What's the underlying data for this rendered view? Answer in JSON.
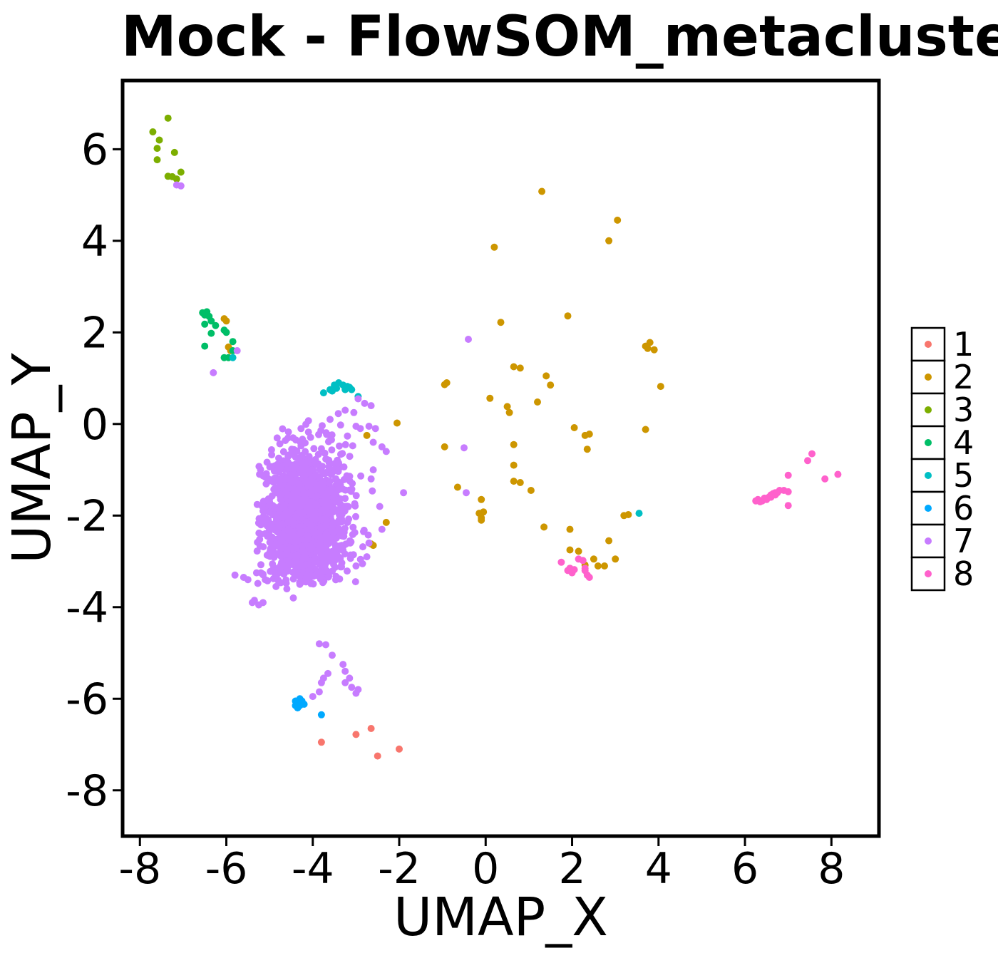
{
  "chart_data": {
    "type": "scatter",
    "title": "Mock - FlowSOM_metaclusters",
    "xlabel": "UMAP_X",
    "ylabel": "UMAP_Y",
    "xlim": [
      -8.4,
      9.1
    ],
    "ylim": [
      -9.0,
      7.5
    ],
    "xticks": [
      -8,
      -6,
      -4,
      -2,
      0,
      2,
      4,
      6,
      8
    ],
    "yticks": [
      -8,
      -6,
      -4,
      -2,
      0,
      2,
      4,
      6
    ],
    "grid": false,
    "legend_position": "right",
    "colors": {
      "1": "#F8766D",
      "2": "#CD9600",
      "3": "#7CAE00",
      "4": "#00BE67",
      "5": "#00BFC4",
      "6": "#00A9FF",
      "7": "#C77CFF",
      "8": "#FF61CC"
    },
    "series": [
      {
        "name": "1",
        "points": [
          [
            -3.8,
            -6.95
          ],
          [
            -3.0,
            -6.78
          ],
          [
            -2.65,
            -6.65
          ],
          [
            -2.5,
            -7.25
          ],
          [
            -2.0,
            -7.1
          ]
        ]
      },
      {
        "name": "2",
        "points": [
          [
            1.3,
            5.08
          ],
          [
            3.05,
            4.45
          ],
          [
            2.85,
            4.0
          ],
          [
            0.2,
            3.86
          ],
          [
            1.9,
            2.36
          ],
          [
            0.35,
            2.22
          ],
          [
            3.7,
            1.7
          ],
          [
            3.8,
            1.78
          ],
          [
            3.9,
            1.62
          ],
          [
            3.75,
            1.65
          ],
          [
            4.05,
            0.82
          ],
          [
            3.7,
            -0.12
          ],
          [
            0.65,
            1.25
          ],
          [
            0.8,
            1.22
          ],
          [
            1.4,
            1.05
          ],
          [
            1.5,
            0.85
          ],
          [
            -0.9,
            0.9
          ],
          [
            -0.95,
            0.86
          ],
          [
            0.1,
            0.56
          ],
          [
            0.5,
            0.38
          ],
          [
            0.55,
            0.25
          ],
          [
            1.2,
            0.48
          ],
          [
            2.05,
            -0.08
          ],
          [
            2.3,
            -0.25
          ],
          [
            2.4,
            -0.22
          ],
          [
            2.35,
            -0.55
          ],
          [
            0.65,
            -0.45
          ],
          [
            -0.95,
            -0.5
          ],
          [
            0.65,
            -0.9
          ],
          [
            0.65,
            -1.25
          ],
          [
            0.8,
            -1.28
          ],
          [
            1.05,
            -1.45
          ],
          [
            -0.65,
            -1.38
          ],
          [
            -0.1,
            -1.65
          ],
          [
            -0.05,
            -1.92
          ],
          [
            -0.15,
            -1.95
          ],
          [
            -0.1,
            -2.05
          ],
          [
            -0.1,
            -2.1
          ],
          [
            3.2,
            -2.0
          ],
          [
            3.3,
            -1.98
          ],
          [
            1.35,
            -2.25
          ],
          [
            1.95,
            -2.3
          ],
          [
            2.85,
            -2.55
          ],
          [
            1.95,
            -2.75
          ],
          [
            2.15,
            -2.78
          ],
          [
            2.5,
            -2.95
          ],
          [
            3.0,
            -2.95
          ],
          [
            2.3,
            -3.08
          ],
          [
            2.6,
            -3.1
          ],
          [
            2.75,
            -3.1
          ],
          [
            -2.05,
            0.02
          ],
          [
            -2.75,
            -0.25
          ],
          [
            -2.3,
            -2.15
          ],
          [
            -2.65,
            -2.62
          ],
          [
            -2.6,
            -2.65
          ],
          [
            -6.0,
            2.25
          ],
          [
            -6.05,
            2.3
          ],
          [
            -5.95,
            1.68
          ],
          [
            -5.9,
            1.6
          ]
        ]
      },
      {
        "name": "3",
        "points": [
          [
            -7.35,
            6.68
          ],
          [
            -7.7,
            6.38
          ],
          [
            -7.55,
            6.2
          ],
          [
            -7.2,
            5.93
          ],
          [
            -7.6,
            6.02
          ],
          [
            -7.6,
            5.77
          ],
          [
            -7.05,
            5.5
          ],
          [
            -7.35,
            5.41
          ],
          [
            -7.25,
            5.4
          ],
          [
            -7.15,
            5.35
          ]
        ]
      },
      {
        "name": "4",
        "points": [
          [
            -6.55,
            2.43
          ],
          [
            -6.45,
            2.45
          ],
          [
            -6.4,
            2.35
          ],
          [
            -6.35,
            2.25
          ],
          [
            -6.5,
            2.38
          ],
          [
            -6.25,
            2.15
          ],
          [
            -6.5,
            2.18
          ],
          [
            -6.05,
            2.05
          ],
          [
            -6.0,
            2.0
          ],
          [
            -6.35,
            1.98
          ],
          [
            -5.85,
            1.8
          ],
          [
            -6.5,
            1.7
          ],
          [
            -5.85,
            1.6
          ],
          [
            -6.05,
            1.45
          ],
          [
            -5.95,
            1.45
          ]
        ]
      },
      {
        "name": "5",
        "points": [
          [
            -3.75,
            0.68
          ],
          [
            -3.6,
            0.75
          ],
          [
            -3.5,
            0.85
          ],
          [
            -3.4,
            0.9
          ],
          [
            -3.3,
            0.85
          ],
          [
            -3.2,
            0.82
          ],
          [
            -3.15,
            0.8
          ],
          [
            -3.25,
            0.75
          ],
          [
            -3.45,
            0.78
          ],
          [
            -3.55,
            0.72
          ],
          [
            -3.1,
            0.75
          ],
          [
            -2.95,
            0.6
          ],
          [
            -5.85,
            1.45
          ],
          [
            3.55,
            -1.95
          ]
        ]
      },
      {
        "name": "6",
        "points": [
          [
            -4.4,
            -6.05
          ],
          [
            -4.35,
            -6.1
          ],
          [
            -4.3,
            -6.0
          ],
          [
            -4.35,
            -6.2
          ],
          [
            -4.3,
            -6.15
          ],
          [
            -4.25,
            -6.05
          ],
          [
            -4.2,
            -6.12
          ],
          [
            -4.4,
            -6.15
          ],
          [
            -3.8,
            -6.35
          ]
        ]
      },
      {
        "name": "7",
        "points": [
          [
            -7.15,
            5.22
          ],
          [
            -7.05,
            5.2
          ],
          [
            -0.4,
            1.85
          ],
          [
            -5.75,
            1.6
          ],
          [
            -6.3,
            1.12
          ],
          [
            -0.5,
            -0.52
          ],
          [
            -0.45,
            -1.5
          ],
          [
            -1.9,
            -1.5
          ],
          [
            -3.85,
            -4.8
          ],
          [
            -3.7,
            -4.82
          ],
          [
            -3.55,
            -5.05
          ],
          [
            -3.3,
            -5.25
          ],
          [
            -3.25,
            -5.4
          ],
          [
            -3.65,
            -5.45
          ],
          [
            -3.75,
            -5.55
          ],
          [
            -3.15,
            -5.55
          ],
          [
            -3.25,
            -5.65
          ],
          [
            -3.1,
            -5.75
          ],
          [
            -3.8,
            -5.65
          ],
          [
            -3.85,
            -5.85
          ],
          [
            -2.95,
            -5.8
          ],
          [
            -3.0,
            -5.88
          ],
          [
            -4.0,
            -5.95
          ],
          [
            -2.7,
            -0.05
          ],
          [
            -2.55,
            -0.1
          ],
          [
            -2.9,
            -0.1
          ],
          [
            -3.0,
            -0.05
          ],
          [
            -3.05,
            0.25
          ],
          [
            -3.25,
            0.3
          ],
          [
            -3.6,
            0.1
          ],
          [
            -2.8,
            0.45
          ],
          [
            -2.65,
            0.4
          ],
          [
            -2.95,
            0.55
          ],
          [
            -2.6,
            -0.4
          ],
          [
            -2.4,
            -0.5
          ],
          [
            -2.3,
            -0.6
          ],
          [
            -2.6,
            -1.0
          ],
          [
            -2.65,
            -1.2
          ],
          [
            -2.45,
            -1.8
          ],
          [
            -2.4,
            -2.3
          ],
          [
            -2.7,
            -2.6
          ],
          [
            -2.75,
            -2.9
          ],
          [
            -2.85,
            -3.05
          ],
          [
            -3.0,
            -3.1
          ],
          [
            -5.6,
            -3.35
          ],
          [
            -5.5,
            -3.4
          ],
          [
            -5.8,
            -3.3
          ],
          [
            -5.3,
            -3.25
          ],
          [
            -5.2,
            -3.25
          ],
          [
            -5.1,
            -3.4
          ],
          [
            -5.35,
            -3.85
          ],
          [
            -5.4,
            -3.9
          ],
          [
            -5.25,
            -3.95
          ],
          [
            -5.15,
            -3.9
          ],
          [
            -4.85,
            -3.55
          ],
          [
            -4.6,
            -3.6
          ],
          [
            -4.45,
            -3.8
          ],
          [
            -4.3,
            -3.5
          ],
          [
            -4.25,
            -3.45
          ],
          [
            -4.1,
            -3.35
          ],
          [
            -5.05,
            -2.45
          ],
          [
            -5.2,
            -2.2
          ],
          [
            -5.15,
            -1.9
          ],
          [
            -5.0,
            -1.7
          ],
          [
            -4.85,
            -1.4
          ],
          [
            -4.75,
            -1.2
          ],
          [
            -4.6,
            -1.0
          ],
          [
            -4.4,
            -0.9
          ]
        ]
      },
      {
        "name": "8",
        "points": [
          [
            7.55,
            -0.65
          ],
          [
            7.45,
            -0.8
          ],
          [
            7.85,
            -1.2
          ],
          [
            8.15,
            -1.1
          ],
          [
            7.0,
            -1.12
          ],
          [
            6.9,
            -1.45
          ],
          [
            7.0,
            -1.48
          ],
          [
            7.0,
            -1.78
          ],
          [
            6.8,
            -1.45
          ],
          [
            6.7,
            -1.5
          ],
          [
            6.65,
            -1.52
          ],
          [
            6.6,
            -1.55
          ],
          [
            6.55,
            -1.6
          ],
          [
            6.5,
            -1.65
          ],
          [
            6.45,
            -1.62
          ],
          [
            6.4,
            -1.68
          ],
          [
            6.35,
            -1.7
          ],
          [
            6.3,
            -1.65
          ],
          [
            6.25,
            -1.68
          ],
          [
            6.6,
            -1.6
          ],
          [
            6.7,
            -1.55
          ],
          [
            6.75,
            -1.5
          ],
          [
            1.75,
            -3.02
          ],
          [
            1.9,
            -3.2
          ],
          [
            2.0,
            -3.25
          ],
          [
            2.05,
            -3.18
          ],
          [
            2.15,
            -2.95
          ],
          [
            2.3,
            -3.2
          ],
          [
            2.35,
            -3.3
          ],
          [
            2.4,
            -3.35
          ],
          [
            2.3,
            -3.15
          ],
          [
            2.25,
            -2.98
          ],
          [
            1.95,
            -3.15
          ]
        ]
      }
    ],
    "cluster7_main_blob": {
      "center": [
        -4.2,
        -2.0
      ],
      "x_range": [
        -5.3,
        -2.6
      ],
      "y_range": [
        -3.5,
        0.5
      ],
      "approx_point_count": 1500
    }
  }
}
